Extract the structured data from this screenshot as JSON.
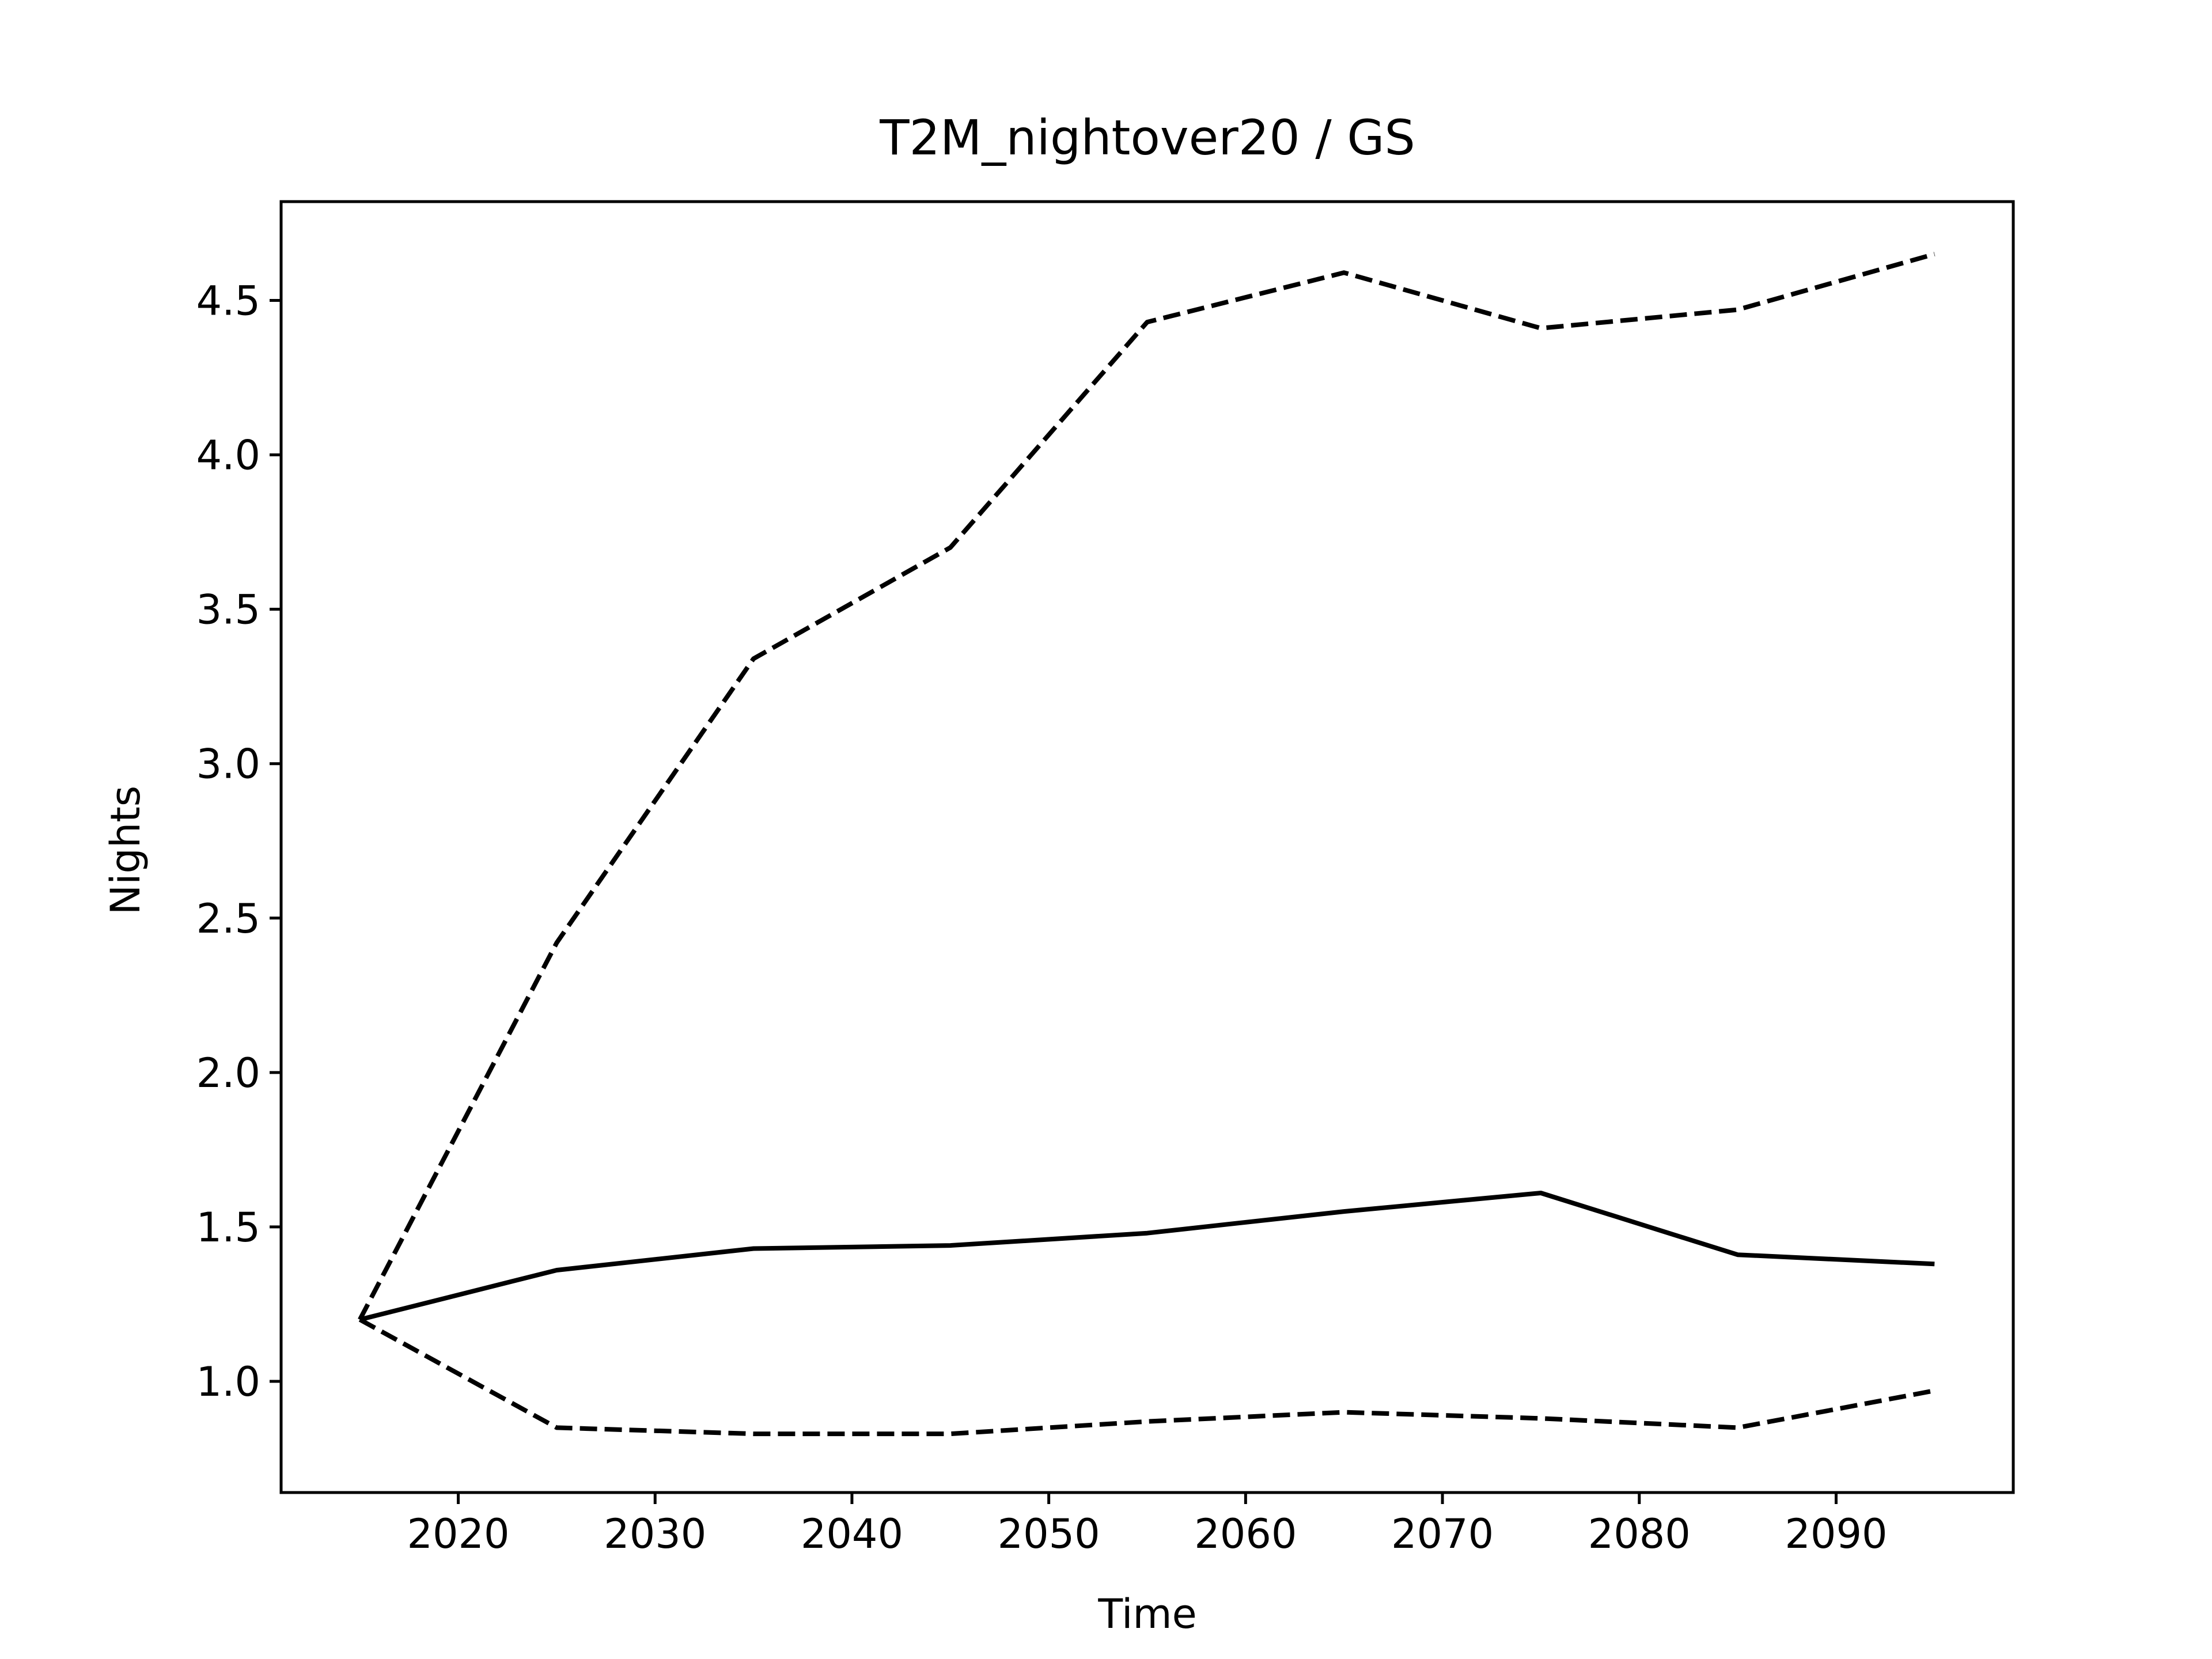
{
  "chart_data": {
    "type": "line",
    "title": "T2M_nightover20 / GS",
    "xlabel": "Time",
    "ylabel": "Nights",
    "xlim": [
      2011,
      2099
    ],
    "ylim": [
      0.64,
      4.82
    ],
    "xticks": [
      2020,
      2030,
      2040,
      2050,
      2060,
      2070,
      2080,
      2090
    ],
    "yticks": [
      1.0,
      1.5,
      2.0,
      2.5,
      3.0,
      3.5,
      4.0,
      4.5
    ],
    "grid": false,
    "x": [
      2015,
      2025,
      2035,
      2045,
      2055,
      2065,
      2075,
      2085,
      2095
    ],
    "series": [
      {
        "style": "solid",
        "color": "#000000",
        "values": [
          1.2,
          1.36,
          1.43,
          1.44,
          1.48,
          1.55,
          1.61,
          1.41,
          1.38
        ]
      },
      {
        "style": "dashed",
        "color": "#000000",
        "values": [
          1.2,
          2.42,
          3.34,
          3.7,
          4.43,
          4.59,
          4.41,
          4.47,
          4.65
        ]
      },
      {
        "style": "dashed",
        "color": "#000000",
        "values": [
          1.2,
          0.85,
          0.83,
          0.83,
          0.87,
          0.9,
          0.88,
          0.85,
          0.97
        ]
      }
    ]
  }
}
